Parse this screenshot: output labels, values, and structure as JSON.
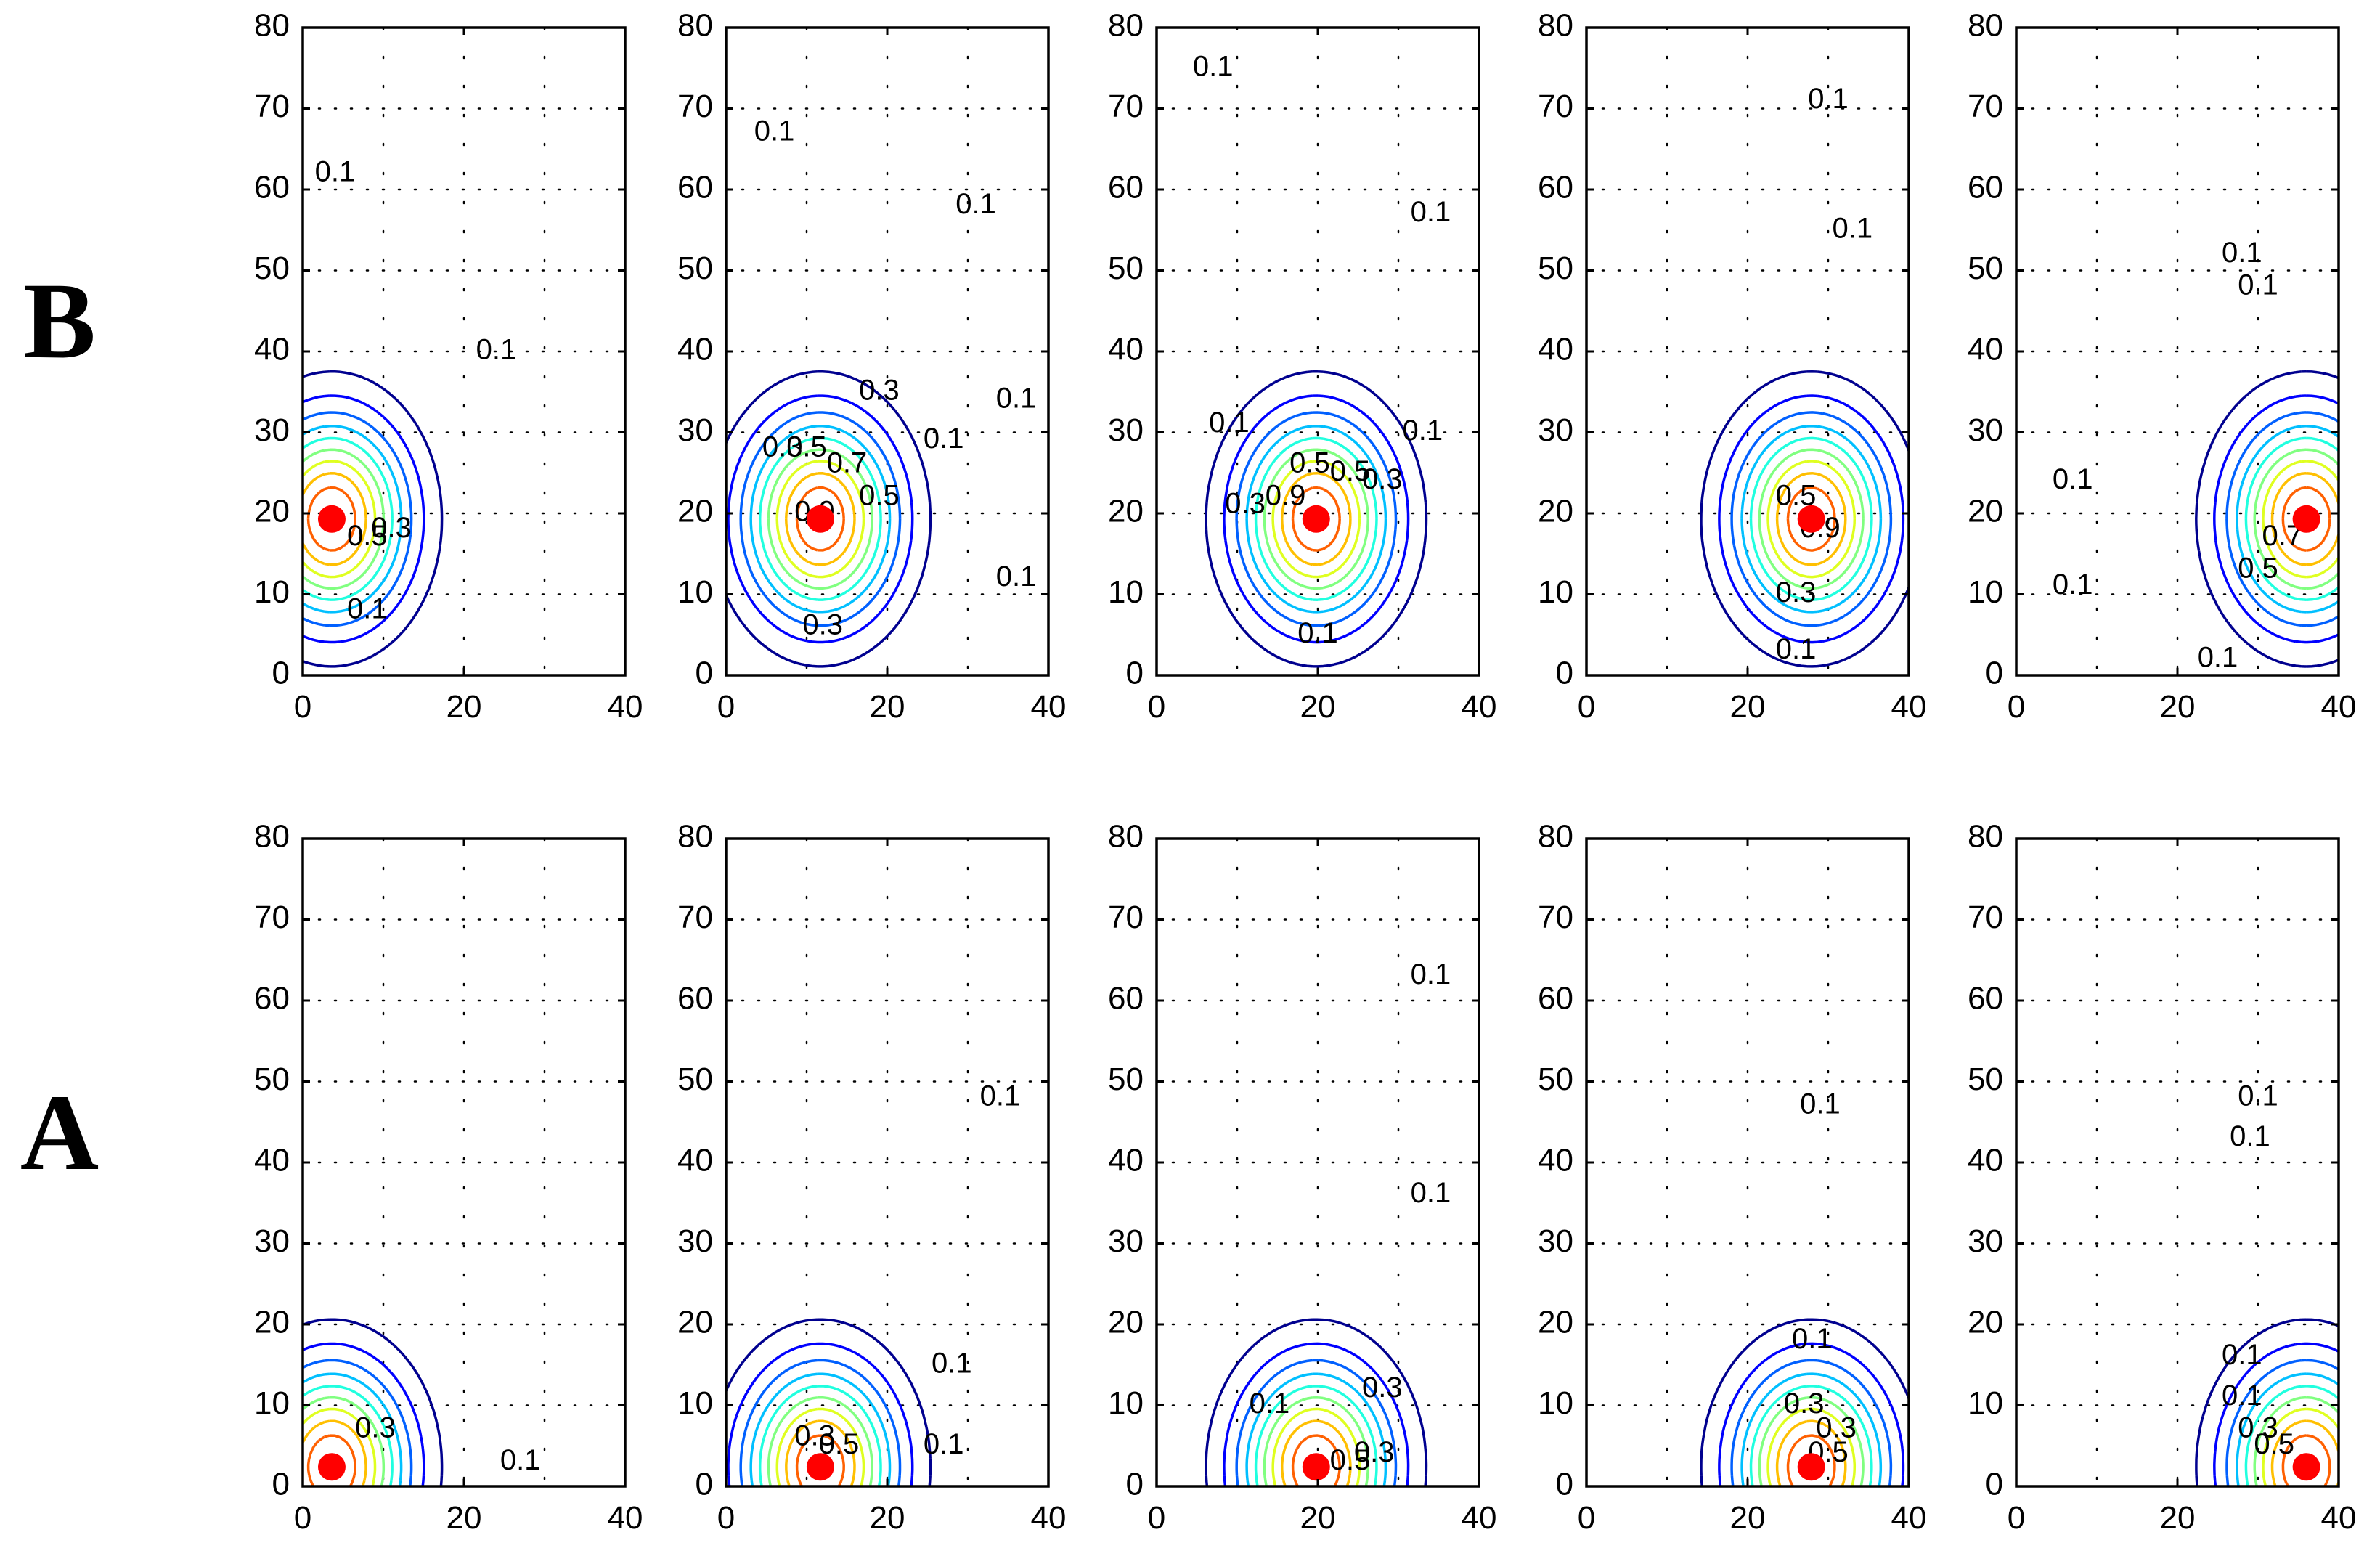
{
  "figure": {
    "rows": [
      {
        "label": "B",
        "source_x": [
          3.6,
          11.7,
          19.8,
          27.9,
          36.0
        ],
        "source_y": 19.3
      },
      {
        "label": "A",
        "source_x": [
          3.6,
          11.7,
          19.8,
          27.9,
          36.0
        ],
        "source_y": 2.4
      }
    ]
  },
  "chart_data": {
    "type": "contour",
    "layout": "2 rows x 5 columns",
    "xlim": [
      0,
      40
    ],
    "ylim": [
      0,
      80
    ],
    "xticks": [
      0,
      20,
      40
    ],
    "yticks": [
      0,
      10,
      20,
      30,
      40,
      50,
      60,
      70,
      80
    ],
    "grid": "dotted",
    "contour_levels": [
      0.1,
      0.2,
      0.3,
      0.4,
      0.5,
      0.6,
      0.7,
      0.8,
      0.9
    ],
    "colors": [
      "#00008f",
      "#0000ff",
      "#0060ff",
      "#00bfff",
      "#20ffdf",
      "#80ff80",
      "#dfff20",
      "#ffbf00",
      "#ff6000",
      "#df0000"
    ],
    "marker_color": "#ff0000",
    "panels": [
      {
        "row": "B",
        "col": 1,
        "source": [
          3.6,
          19.3
        ],
        "labels": [
          {
            "x": 4,
            "y": 62,
            "t": "0.1"
          },
          {
            "x": 24,
            "y": 40,
            "t": "0.1"
          },
          {
            "x": 8,
            "y": 17,
            "t": "0.5"
          },
          {
            "x": 11,
            "y": 18,
            "t": "0.3"
          },
          {
            "x": 8,
            "y": 8,
            "t": "0.1"
          }
        ]
      },
      {
        "row": "B",
        "col": 2,
        "source": [
          11.7,
          19.3
        ],
        "labels": [
          {
            "x": 6,
            "y": 67,
            "t": "0.1"
          },
          {
            "x": 31,
            "y": 58,
            "t": "0.1"
          },
          {
            "x": 36,
            "y": 34,
            "t": "0.1"
          },
          {
            "x": 36,
            "y": 12,
            "t": "0.1"
          },
          {
            "x": 19,
            "y": 35,
            "t": "0.3"
          },
          {
            "x": 27,
            "y": 29,
            "t": "0.1"
          },
          {
            "x": 7,
            "y": 28,
            "t": "0.3"
          },
          {
            "x": 10,
            "y": 28,
            "t": "0.5"
          },
          {
            "x": 15,
            "y": 26,
            "t": "0.7"
          },
          {
            "x": 11,
            "y": 20,
            "t": "0.9"
          },
          {
            "x": 19,
            "y": 22,
            "t": "0.5"
          },
          {
            "x": 12,
            "y": 6,
            "t": "0.3"
          }
        ]
      },
      {
        "row": "B",
        "col": 3,
        "source": [
          19.8,
          19.3
        ],
        "labels": [
          {
            "x": 7,
            "y": 75,
            "t": "0.1"
          },
          {
            "x": 34,
            "y": 57,
            "t": "0.1"
          },
          {
            "x": 9,
            "y": 31,
            "t": "0.1"
          },
          {
            "x": 33,
            "y": 30,
            "t": "0.1"
          },
          {
            "x": 28,
            "y": 24,
            "t": "0.3"
          },
          {
            "x": 11,
            "y": 21,
            "t": "0.3"
          },
          {
            "x": 16,
            "y": 22,
            "t": "0.9"
          },
          {
            "x": 19,
            "y": 26,
            "t": "0.5"
          },
          {
            "x": 24,
            "y": 25,
            "t": "0.5"
          },
          {
            "x": 20,
            "y": 5,
            "t": "0.1"
          }
        ]
      },
      {
        "row": "B",
        "col": 4,
        "source": [
          27.9,
          19.3
        ],
        "labels": [
          {
            "x": 30,
            "y": 71,
            "t": "0.1"
          },
          {
            "x": 33,
            "y": 55,
            "t": "0.1"
          },
          {
            "x": 26,
            "y": 22,
            "t": "0.5"
          },
          {
            "x": 29,
            "y": 18,
            "t": "0.9"
          },
          {
            "x": 26,
            "y": 10,
            "t": "0.3"
          },
          {
            "x": 26,
            "y": 3,
            "t": "0.1"
          }
        ]
      },
      {
        "row": "B",
        "col": 5,
        "source": [
          36.0,
          19.3
        ],
        "labels": [
          {
            "x": 28,
            "y": 52,
            "t": "0.1"
          },
          {
            "x": 30,
            "y": 48,
            "t": "0.1"
          },
          {
            "x": 7,
            "y": 24,
            "t": "0.1"
          },
          {
            "x": 7,
            "y": 11,
            "t": "0.1"
          },
          {
            "x": 33,
            "y": 17,
            "t": "0.7"
          },
          {
            "x": 30,
            "y": 13,
            "t": "0.5"
          },
          {
            "x": 25,
            "y": 2,
            "t": "0.1"
          }
        ]
      },
      {
        "row": "A",
        "col": 1,
        "source": [
          3.6,
          2.4
        ],
        "labels": [
          {
            "x": 9,
            "y": 7,
            "t": "0.3"
          },
          {
            "x": 27,
            "y": 3,
            "t": "0.1"
          }
        ]
      },
      {
        "row": "A",
        "col": 2,
        "source": [
          11.7,
          2.4
        ],
        "labels": [
          {
            "x": 34,
            "y": 48,
            "t": "0.1"
          },
          {
            "x": 28,
            "y": 15,
            "t": "0.1"
          },
          {
            "x": 11,
            "y": 6,
            "t": "0.3"
          },
          {
            "x": 14,
            "y": 5,
            "t": "0.5"
          },
          {
            "x": 27,
            "y": 5,
            "t": "0.1"
          }
        ]
      },
      {
        "row": "A",
        "col": 3,
        "source": [
          19.8,
          2.4
        ],
        "labels": [
          {
            "x": 34,
            "y": 63,
            "t": "0.1"
          },
          {
            "x": 34,
            "y": 36,
            "t": "0.1"
          },
          {
            "x": 14,
            "y": 10,
            "t": "0.1"
          },
          {
            "x": 28,
            "y": 12,
            "t": "0.3"
          },
          {
            "x": 27,
            "y": 4,
            "t": "0.3"
          },
          {
            "x": 24,
            "y": 3,
            "t": "0.5"
          }
        ]
      },
      {
        "row": "A",
        "col": 4,
        "source": [
          27.9,
          2.4
        ],
        "labels": [
          {
            "x": 29,
            "y": 47,
            "t": "0.1"
          },
          {
            "x": 28,
            "y": 18,
            "t": "0.1"
          },
          {
            "x": 27,
            "y": 10,
            "t": "0.3"
          },
          {
            "x": 31,
            "y": 7,
            "t": "0.3"
          },
          {
            "x": 30,
            "y": 4,
            "t": "0.5"
          }
        ]
      },
      {
        "row": "A",
        "col": 5,
        "source": [
          36.0,
          2.4
        ],
        "labels": [
          {
            "x": 30,
            "y": 48,
            "t": "0.1"
          },
          {
            "x": 29,
            "y": 43,
            "t": "0.1"
          },
          {
            "x": 28,
            "y": 16,
            "t": "0.1"
          },
          {
            "x": 28,
            "y": 11,
            "t": "0.1"
          },
          {
            "x": 30,
            "y": 7,
            "t": "0.3"
          },
          {
            "x": 32,
            "y": 5,
            "t": "0.5"
          }
        ]
      }
    ]
  }
}
